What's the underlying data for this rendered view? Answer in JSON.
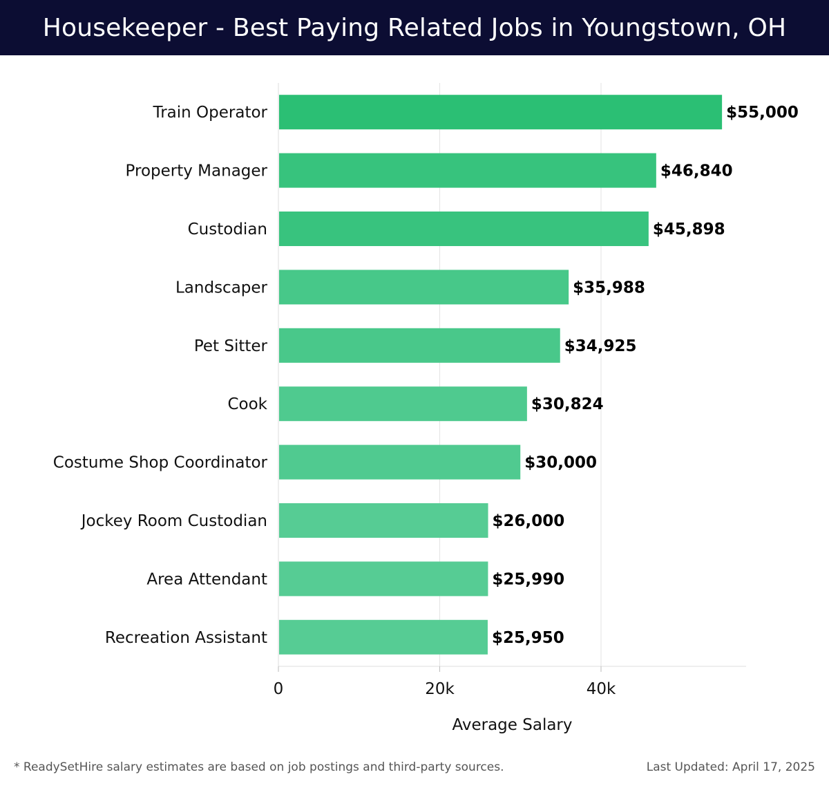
{
  "header": {
    "title": "Housekeeper - Best Paying Related Jobs in Youngstown, OH"
  },
  "chart_data": {
    "type": "bar",
    "orientation": "horizontal",
    "title": "Housekeeper - Best Paying Related Jobs in Youngstown, OH",
    "categories": [
      "Train Operator",
      "Property Manager",
      "Custodian",
      "Landscaper",
      "Pet Sitter",
      "Cook",
      "Costume Shop Coordinator",
      "Jockey Room Custodian",
      "Area Attendant",
      "Recreation Assistant"
    ],
    "values": [
      55000,
      46840,
      45898,
      35988,
      34925,
      30824,
      30000,
      26000,
      25990,
      25950
    ],
    "value_labels": [
      "$55,000",
      "$46,840",
      "$45,898",
      "$35,988",
      "$34,925",
      "$30,824",
      "$30,000",
      "$26,000",
      "$25,990",
      "$25,950"
    ],
    "xlabel": "Average Salary",
    "ylabel": "",
    "xlim": [
      0,
      58000
    ],
    "xticks": [
      0,
      20000,
      40000
    ],
    "xtick_labels": [
      "0",
      "20k",
      "40k"
    ],
    "grid": true,
    "bar_color_top": "#2bbf74",
    "bar_color_bottom": "#56cc94"
  },
  "footer": {
    "note": "* ReadySetHire salary estimates are based on job postings and third-party sources.",
    "updated": "Last Updated: April 17, 2025"
  }
}
